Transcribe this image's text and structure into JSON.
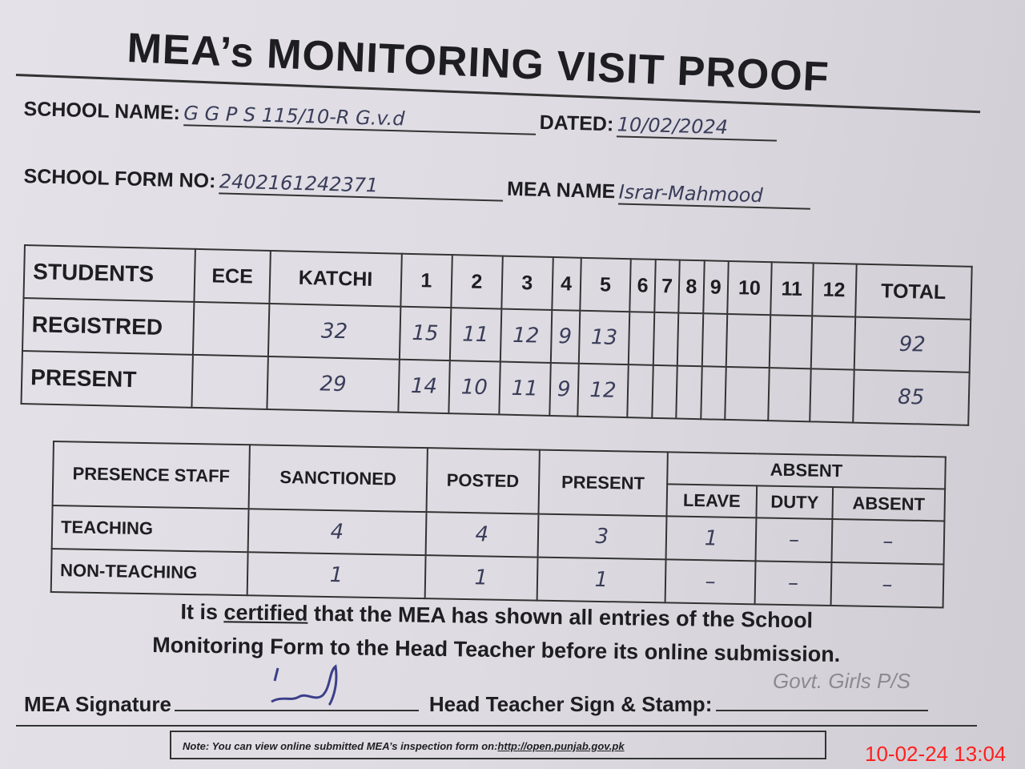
{
  "title": "MEA’s MONITORING VISIT PROOF",
  "fields": {
    "school_name_label": "SCHOOL NAME:",
    "school_name_value": "G G P S 115/10-R G.v.d",
    "dated_label": "DATED:",
    "dated_value": "10/02/2024",
    "form_no_label": "SCHOOL FORM NO:",
    "form_no_value": "2402161242371",
    "mea_name_label": "MEA NAME",
    "mea_name_value": "Israr-Mahmood"
  },
  "students_table": {
    "headers": [
      "STUDENTS",
      "ECE",
      "KATCHI",
      "1",
      "2",
      "3",
      "4",
      "5",
      "6",
      "7",
      "8",
      "9",
      "10",
      "11",
      "12",
      "TOTAL"
    ],
    "rows": [
      {
        "label": "REGISTRED",
        "values": [
          "",
          "32",
          "15",
          "11",
          "12",
          "9",
          "13",
          "",
          "",
          "",
          "",
          "",
          "",
          "",
          "92"
        ]
      },
      {
        "label": "PRESENT",
        "values": [
          "",
          "29",
          "14",
          "10",
          "11",
          "9",
          "12",
          "",
          "",
          "",
          "",
          "",
          "",
          "",
          "85"
        ]
      }
    ]
  },
  "staff_table": {
    "header_staff": "PRESENCE STAFF",
    "header_sanctioned": "SANCTIONED",
    "header_posted": "POSTED",
    "header_present": "PRESENT",
    "header_absent": "ABSENT",
    "sub_headers": [
      "LEAVE",
      "DUTY",
      "ABSENT"
    ],
    "rows": [
      {
        "label": "TEACHING",
        "values": [
          "4",
          "4",
          "3",
          "1",
          "–",
          "–"
        ]
      },
      {
        "label": "NON-TEACHING",
        "values": [
          "1",
          "1",
          "1",
          "–",
          "–",
          "–"
        ]
      }
    ]
  },
  "certification": {
    "line1_prefix": "It is ",
    "line1_underlined": "certified",
    "line1_suffix": " that the MEA has shown all entries of the School",
    "line2": "Monitoring Form to the Head Teacher before its online submission."
  },
  "signatures": {
    "mea_label": "MEA Signature",
    "head_label": "Head Teacher Sign & Stamp:",
    "stamp_text": "Govt. Girls P/S"
  },
  "note": {
    "text": "Note: You can view online submitted MEA’s inspection form on:",
    "link": "http://open.punjab.gov.pk"
  },
  "timestamp": "10-02-24  13:04"
}
